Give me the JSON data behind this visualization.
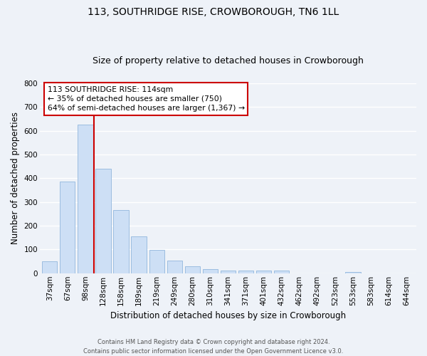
{
  "title": "113, SOUTHRIDGE RISE, CROWBOROUGH, TN6 1LL",
  "subtitle": "Size of property relative to detached houses in Crowborough",
  "xlabel": "Distribution of detached houses by size in Crowborough",
  "ylabel": "Number of detached properties",
  "bar_labels": [
    "37sqm",
    "67sqm",
    "98sqm",
    "128sqm",
    "158sqm",
    "189sqm",
    "219sqm",
    "249sqm",
    "280sqm",
    "310sqm",
    "341sqm",
    "371sqm",
    "401sqm",
    "432sqm",
    "462sqm",
    "492sqm",
    "523sqm",
    "553sqm",
    "583sqm",
    "614sqm",
    "644sqm"
  ],
  "bar_values": [
    50,
    385,
    625,
    440,
    265,
    155,
    97,
    52,
    30,
    18,
    10,
    10,
    10,
    12,
    0,
    0,
    0,
    5,
    0,
    0,
    0
  ],
  "bar_color": "#cddff5",
  "bar_edge_color": "#9bbde0",
  "vline_x": 2.5,
  "vline_color": "#cc0000",
  "ylim": [
    0,
    800
  ],
  "yticks": [
    0,
    100,
    200,
    300,
    400,
    500,
    600,
    700,
    800
  ],
  "annotation_title": "113 SOUTHRIDGE RISE: 114sqm",
  "annotation_line1": "← 35% of detached houses are smaller (750)",
  "annotation_line2": "64% of semi-detached houses are larger (1,367) →",
  "annotation_box_color": "#ffffff",
  "annotation_box_edge": "#cc0000",
  "footer_line1": "Contains HM Land Registry data © Crown copyright and database right 2024.",
  "footer_line2": "Contains public sector information licensed under the Open Government Licence v3.0.",
  "background_color": "#eef2f8",
  "grid_color": "#ffffff",
  "title_fontsize": 10,
  "subtitle_fontsize": 9,
  "xlabel_fontsize": 8.5,
  "ylabel_fontsize": 8.5,
  "tick_fontsize": 7.5,
  "annotation_fontsize": 7.8,
  "footer_fontsize": 6
}
